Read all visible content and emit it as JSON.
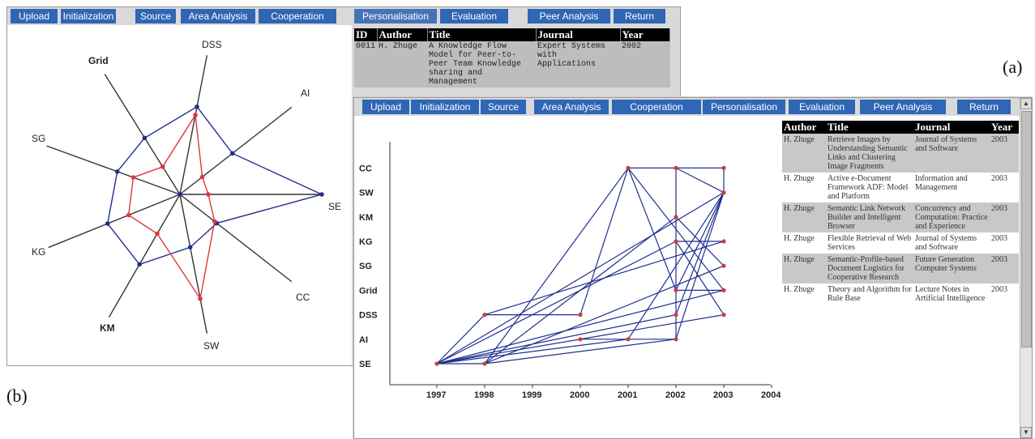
{
  "menu": [
    "Upload",
    "Initialization",
    "Source",
    "Area Analysis",
    "Cooperation",
    "Personalisation",
    "Evaluation",
    "Peer Analysis",
    "Return"
  ],
  "label_a": "(a)",
  "label_b": "(b)",
  "table_a": {
    "headers": [
      "ID",
      "Author",
      "Title",
      "Journal",
      "Year"
    ],
    "row": {
      "id": "0011",
      "author": "H. Zhuge",
      "title": "A Knowledge Flow Model for Peer-to-Peer Team Knowledge sharing and Management",
      "journal": "Expert Systems with Applications",
      "year": "2002"
    }
  },
  "table_b": {
    "headers": [
      "Author",
      "Title",
      "Journal",
      "Year"
    ],
    "rows": [
      {
        "author": "H. Zhuge",
        "title": "Retrieve Images by Understanding Semantic Links and Clustering Image Fragments",
        "journal": "Journal of Systems and Software",
        "year": "2003"
      },
      {
        "author": "H. Zhuge",
        "title": "Active e-Document Framework ADF: Model and Platform",
        "journal": "Information and Management",
        "year": "2003"
      },
      {
        "author": "H. Zhuge",
        "title": "Semantic Link Network Builder and Intelligent Browser",
        "journal": "Concurrency and Computation: Practice and Experience",
        "year": "2003"
      },
      {
        "author": "H. Zhuge",
        "title": "Flexible Retrieval of Web Services",
        "journal": "Journal of Systems and Software",
        "year": "2003"
      },
      {
        "author": "H. Zhuge",
        "title": "Semantic-Profile-based Document Logistics for Cooperative Research",
        "journal": "Future Generation Computer Systems",
        "year": "2003"
      },
      {
        "author": "H. Zhuge",
        "title": "Theory and Algorithm for Rule Base",
        "journal": "Lecture Notes in Artificial Intelligence",
        "year": "2003"
      }
    ]
  },
  "chart_data": [
    {
      "type": "radar",
      "axes": [
        "DSS",
        "AI",
        "SE",
        "CC",
        "SW",
        "KM",
        "KG",
        "SG",
        "Grid"
      ],
      "series": [
        {
          "values": [
            0.63,
            0.47,
            1.0,
            0.33,
            0.38,
            0.57,
            0.55,
            0.47,
            0.47
          ]
        },
        {
          "values": [
            0.57,
            0.2,
            0.2,
            0.31,
            0.75,
            0.32,
            0.39,
            0.35,
            0.23
          ]
        }
      ],
      "colors": {
        "series_1": "#1f2f8f",
        "series_2": "#e0363b"
      }
    },
    {
      "type": "line",
      "x_ticks": [
        "1997",
        "1998",
        "1999",
        "2000",
        "2001",
        "2002",
        "2003",
        "2004"
      ],
      "y_categories": [
        "SE",
        "AI",
        "DSS",
        "Grid",
        "SG",
        "KG",
        "KM",
        "SW",
        "CC"
      ],
      "points": [
        {
          "x": 1997,
          "y": "SE"
        },
        {
          "x": 1998,
          "y": "SE"
        },
        {
          "x": 1998,
          "y": "DSS"
        },
        {
          "x": 2000,
          "y": "DSS"
        },
        {
          "x": 2000,
          "y": "AI"
        },
        {
          "x": 2001,
          "y": "AI"
        },
        {
          "x": 2001,
          "y": "CC"
        },
        {
          "x": 2002,
          "y": "CC"
        },
        {
          "x": 2003,
          "y": "CC"
        },
        {
          "x": 2002,
          "y": "KM"
        },
        {
          "x": 2002,
          "y": "KG"
        },
        {
          "x": 2002,
          "y": "Grid"
        },
        {
          "x": 2002,
          "y": "DSS"
        },
        {
          "x": 2002,
          "y": "AI"
        },
        {
          "x": 2003,
          "y": "SW"
        },
        {
          "x": 2003,
          "y": "KG"
        },
        {
          "x": 2003,
          "y": "SG"
        },
        {
          "x": 2003,
          "y": "Grid"
        },
        {
          "x": 2003,
          "y": "DSS"
        }
      ],
      "edges": [
        [
          1997,
          "SE",
          2003,
          "SW"
        ],
        [
          1997,
          "SE",
          2003,
          "Grid"
        ],
        [
          1997,
          "SE",
          2003,
          "DSS"
        ],
        [
          1997,
          "SE",
          2002,
          "KG"
        ],
        [
          1997,
          "SE",
          2002,
          "DSS"
        ],
        [
          1997,
          "SE",
          2001,
          "AI"
        ],
        [
          1997,
          "SE",
          1998,
          "DSS"
        ],
        [
          1997,
          "SE",
          1998,
          "SE"
        ],
        [
          1998,
          "SE",
          2002,
          "KM"
        ],
        [
          1998,
          "SE",
          2003,
          "SG"
        ],
        [
          1998,
          "SE",
          2002,
          "AI"
        ],
        [
          1998,
          "SE",
          2001,
          "CC"
        ],
        [
          1998,
          "DSS",
          2000,
          "DSS"
        ],
        [
          1998,
          "DSS",
          2003,
          "KG"
        ],
        [
          2000,
          "DSS",
          2001,
          "CC"
        ],
        [
          2000,
          "AI",
          2002,
          "AI"
        ],
        [
          2001,
          "CC",
          2003,
          "CC"
        ],
        [
          2001,
          "CC",
          2003,
          "Grid"
        ],
        [
          2001,
          "CC",
          2002,
          "Grid"
        ],
        [
          2002,
          "CC",
          2003,
          "SW"
        ],
        [
          2002,
          "KM",
          2003,
          "SG"
        ],
        [
          2002,
          "KG",
          2003,
          "KG"
        ],
        [
          2002,
          "Grid",
          2003,
          "Grid"
        ],
        [
          2002,
          "Grid",
          2003,
          "SW"
        ],
        [
          2002,
          "DSS",
          2003,
          "SW"
        ],
        [
          2002,
          "AI",
          2003,
          "SW"
        ],
        [
          2003,
          "SW",
          2003,
          "CC"
        ],
        [
          2001,
          "AI",
          2003,
          "SW"
        ],
        [
          2002,
          "AI",
          2002,
          "CC"
        ],
        [
          2002,
          "KG",
          2003,
          "DSS"
        ]
      ],
      "colors": {
        "line": "#1f2f8f",
        "marker": "#d23a3a"
      }
    }
  ]
}
